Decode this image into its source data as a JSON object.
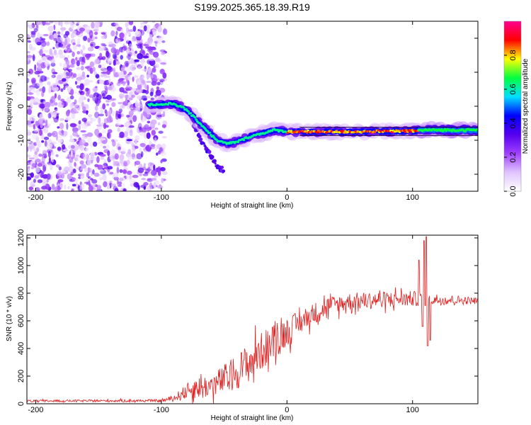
{
  "title": "S199.2025.365.18.39.R19",
  "chart_data": [
    {
      "type": "heatmap",
      "xlabel": "Height of straight line (km)",
      "ylabel": "Frequency (Hz)",
      "xlim": [
        -207,
        152
      ],
      "ylim": [
        -25,
        25
      ],
      "x_ticks": [
        -200,
        -100,
        0,
        100
      ],
      "y_ticks": [
        -20,
        -10,
        0,
        10,
        20
      ],
      "noise_region_x": [
        -207,
        -97
      ],
      "main_track": [
        {
          "x": -110,
          "y": 0.5
        },
        {
          "x": -100,
          "y": 0.5
        },
        {
          "x": -90,
          "y": 0.8
        },
        {
          "x": -80,
          "y": -1.0
        },
        {
          "x": -72,
          "y": -4.0
        },
        {
          "x": -64,
          "y": -7.0
        },
        {
          "x": -56,
          "y": -10.0
        },
        {
          "x": -48,
          "y": -11.0
        },
        {
          "x": -40,
          "y": -10.5
        },
        {
          "x": -30,
          "y": -9.0
        },
        {
          "x": -20,
          "y": -8.0
        },
        {
          "x": -10,
          "y": -7.0
        },
        {
          "x": 0,
          "y": -7.5
        },
        {
          "x": 50,
          "y": -7.5
        },
        {
          "x": 100,
          "y": -7.3
        },
        {
          "x": 110,
          "y": -7.0
        },
        {
          "x": 152,
          "y": -7.0
        }
      ],
      "secondary_track": [
        {
          "x": -75,
          "y": -5.0
        },
        {
          "x": -68,
          "y": -10.0
        },
        {
          "x": -60,
          "y": -15.0
        },
        {
          "x": -55,
          "y": -18.0
        },
        {
          "x": -50,
          "y": -19.0
        }
      ],
      "colorbar": {
        "label": "Normalized spectral amplitude",
        "range": [
          0,
          1
        ],
        "ticks": [
          "0.0",
          "0.2",
          "0.4",
          "0.6",
          "0.8"
        ],
        "tick_values": [
          0,
          0.2,
          0.4,
          0.6,
          0.8
        ],
        "colors": [
          "#ffffff",
          "#e0c4ff",
          "#a040ff",
          "#5500ee",
          "#0000ff",
          "#00e0ff",
          "#00ff40",
          "#ffff00",
          "#ff0000",
          "#ff0090"
        ]
      }
    },
    {
      "type": "line",
      "xlabel": "Height of straight line (km)",
      "ylabel": "SNR (10 * v/v)",
      "xlim": [
        -207,
        152
      ],
      "ylim": [
        0,
        1220
      ],
      "x_ticks": [
        -200,
        -100,
        0,
        100
      ],
      "y_ticks": [
        0,
        200,
        400,
        600,
        800,
        1000,
        1200
      ],
      "color": "#e02020",
      "envelope": [
        {
          "x": -207,
          "mean": 20,
          "amp": 10
        },
        {
          "x": -100,
          "mean": 22,
          "amp": 12
        },
        {
          "x": -90,
          "mean": 40,
          "amp": 30
        },
        {
          "x": -75,
          "mean": 110,
          "amp": 90
        },
        {
          "x": -60,
          "mean": 130,
          "amp": 110
        },
        {
          "x": -45,
          "mean": 200,
          "amp": 150
        },
        {
          "x": -30,
          "mean": 300,
          "amp": 180
        },
        {
          "x": -15,
          "mean": 420,
          "amp": 170
        },
        {
          "x": 0,
          "mean": 520,
          "amp": 130
        },
        {
          "x": 15,
          "mean": 620,
          "amp": 100
        },
        {
          "x": 30,
          "mean": 700,
          "amp": 90
        },
        {
          "x": 50,
          "mean": 740,
          "amp": 80
        },
        {
          "x": 80,
          "mean": 755,
          "amp": 75
        },
        {
          "x": 100,
          "mean": 760,
          "amp": 70
        },
        {
          "x": 152,
          "mean": 745,
          "amp": 30
        }
      ],
      "spikes": [
        {
          "x": 105,
          "y": 1040
        },
        {
          "x": 109,
          "y": 1180
        },
        {
          "x": 111,
          "y": 1210
        },
        {
          "x": 112,
          "y": 420
        },
        {
          "x": 114,
          "y": 460
        },
        {
          "x": 108,
          "y": 560
        }
      ]
    }
  ]
}
